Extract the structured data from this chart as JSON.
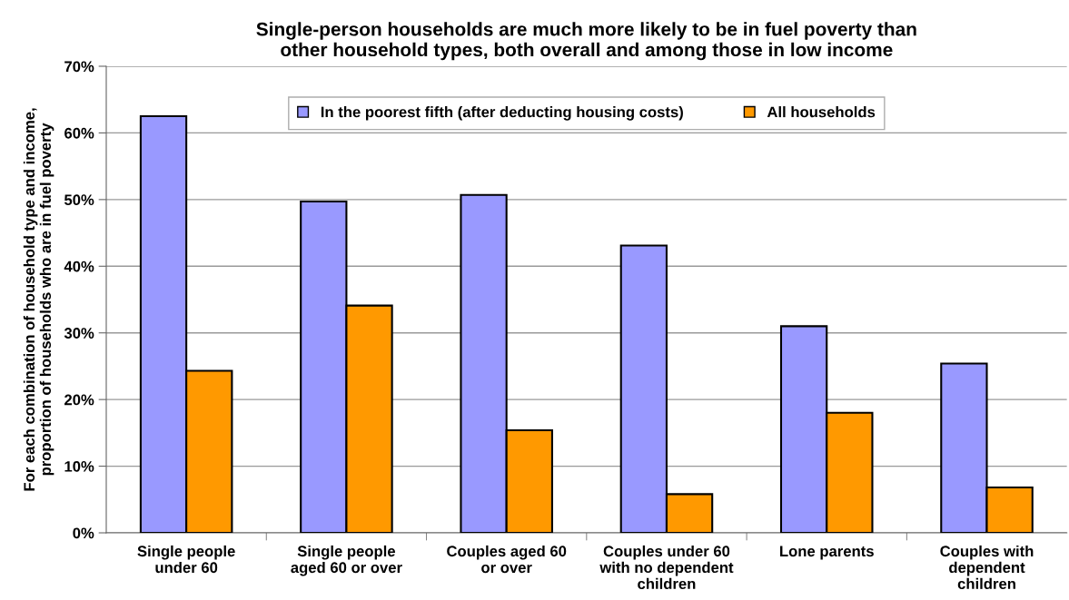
{
  "chart_data": {
    "type": "bar",
    "title": "Single-person households are much more likely to be in fuel poverty than\nother household types, both overall and among those in low income",
    "ylabel": "For each combination of household type and income,\nproportion of households who are in fuel poverty",
    "categories": [
      "Single people\nunder 60",
      "Single people\naged 60 or over",
      "Couples aged 60\nor over",
      "Couples under 60\nwith no dependent\nchildren",
      "Lone parents",
      "Couples with\ndependent\nchildren"
    ],
    "series": [
      {
        "name": "In the poorest fifth (after deducting housing costs)",
        "color": "#9999ff",
        "values": [
          62.5,
          49.7,
          50.7,
          43.1,
          31.0,
          25.4
        ]
      },
      {
        "name": "All households",
        "color": "#ff9900",
        "values": [
          24.3,
          34.1,
          15.4,
          5.8,
          18.0,
          6.8
        ]
      }
    ],
    "ylim": [
      0,
      70
    ],
    "yticks": [
      {
        "value": 0,
        "label": "0%"
      },
      {
        "value": 10,
        "label": "10%"
      },
      {
        "value": 20,
        "label": "20%"
      },
      {
        "value": 30,
        "label": "30%"
      },
      {
        "value": 40,
        "label": "40%"
      },
      {
        "value": 50,
        "label": "50%"
      },
      {
        "value": 60,
        "label": "60%"
      },
      {
        "value": 70,
        "label": "70%"
      }
    ],
    "grid": "y",
    "legend": "top"
  }
}
